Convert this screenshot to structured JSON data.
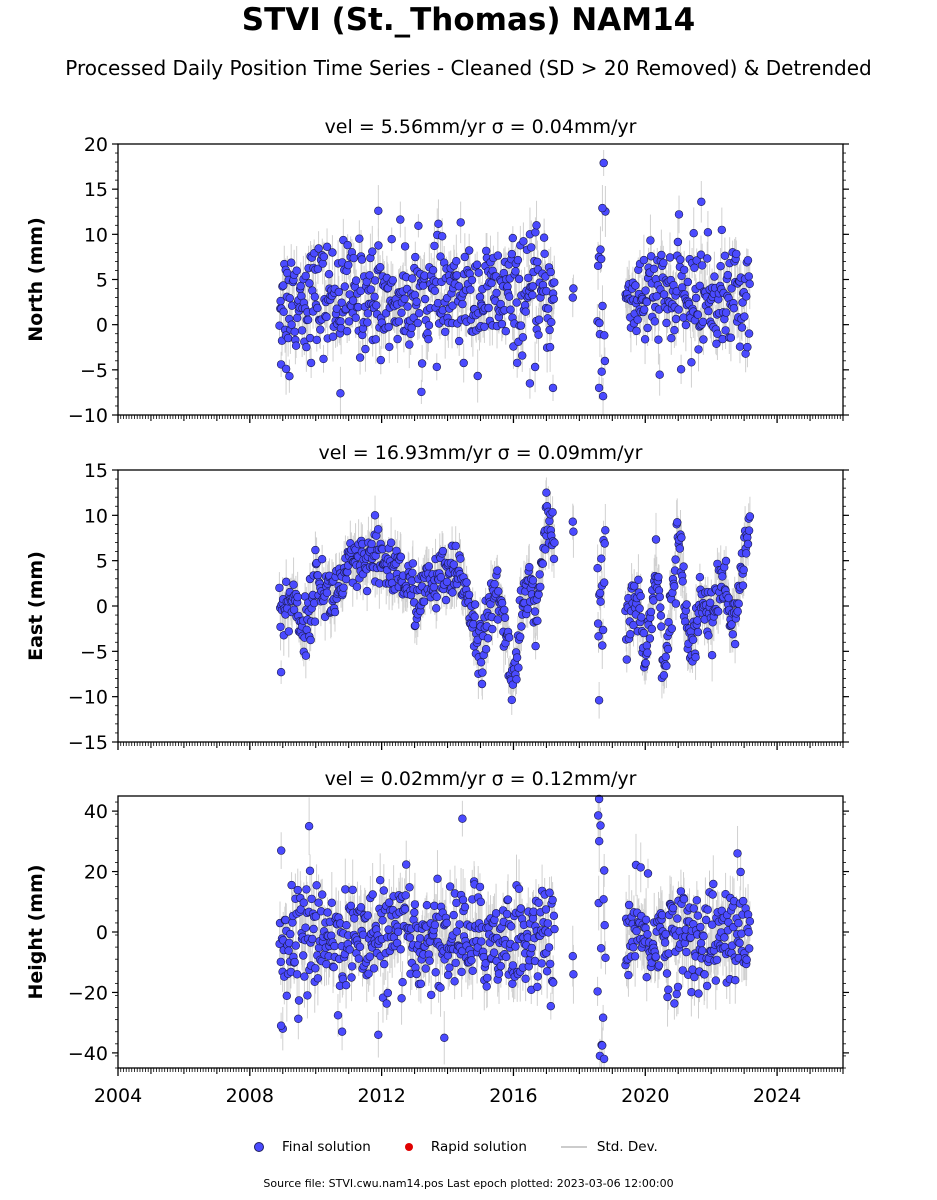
{
  "figure": {
    "title": "STVI (St._Thomas) NAM14",
    "subtitle": "Processed Daily Position Time Series - Cleaned (SD > 20 Removed) & Detrended",
    "footer": "Source file: STVI.cwu.nam14.pos  Last epoch plotted: 2023-03-06 12:00:00"
  },
  "legend": {
    "final": "Final solution",
    "rapid": "Rapid solution",
    "std": "Std. Dev."
  },
  "colors": {
    "final_fill": "#4a4aff",
    "final_edge": "#1a1a4a",
    "rapid": "#e00000",
    "std_dev": "#bdbdbd",
    "axis": "#000000"
  },
  "chart_data": [
    {
      "type": "scatter",
      "title": "vel = 5.56mm/yr   σ = 0.04mm/yr",
      "ylabel": "North (mm)",
      "xlabel": "",
      "xlim": [
        2004,
        2026
      ],
      "ylim": [
        -10,
        20
      ],
      "yticks": [
        -10,
        -5,
        0,
        5,
        10,
        15,
        20
      ],
      "xticks": [
        2004,
        2008,
        2012,
        2016,
        2020,
        2024
      ],
      "show_xtick_labels": false,
      "grid": false,
      "series": [
        {
          "name": "Final solution",
          "segments": [
            [
              2008.9,
              2017.25
            ],
            [
              2018.55,
              2018.8
            ],
            [
              2019.4,
              2023.18
            ]
          ],
          "isolated": [
            [
              2017.8,
              3.0
            ],
            [
              2017.82,
              4.0
            ]
          ],
          "x_step_years": 0.0185,
          "center": 3.0,
          "noise_sd": 3.0,
          "std_dev_halfwidth": 2.0,
          "outliers": [
            [
              2010.75,
              -7.6
            ],
            [
              2008.95,
              -4.4
            ],
            [
              2009.1,
              -4.9
            ],
            [
              2009.2,
              -5.7
            ],
            [
              2018.6,
              -7.0
            ],
            [
              2018.7,
              12.9
            ],
            [
              2021.7,
              13.6
            ],
            [
              2016.5,
              -6.5
            ],
            [
              2017.2,
              -7.0
            ],
            [
              2011.9,
              12.6
            ],
            [
              2016.7,
              11.0
            ]
          ]
        }
      ]
    },
    {
      "type": "scatter",
      "title": "vel = 16.93mm/yr   σ = 0.09mm/yr",
      "ylabel": "East (mm)",
      "xlabel": "",
      "xlim": [
        2004,
        2026
      ],
      "ylim": [
        -15,
        15
      ],
      "yticks": [
        -15,
        -10,
        -5,
        0,
        5,
        10,
        15
      ],
      "xticks": [
        2004,
        2008,
        2012,
        2016,
        2020,
        2024
      ],
      "show_xtick_labels": false,
      "grid": false,
      "series": [
        {
          "name": "Final solution",
          "segments": [
            [
              2008.9,
              2017.25
            ],
            [
              2018.55,
              2018.8
            ],
            [
              2019.4,
              2023.18
            ]
          ],
          "isolated": [
            [
              2017.8,
              9.3
            ],
            [
              2017.82,
              8.2
            ]
          ],
          "x_step_years": 0.0185,
          "trend_knots": [
            [
              2008.9,
              -1
            ],
            [
              2009.3,
              1
            ],
            [
              2009.7,
              -3
            ],
            [
              2010.0,
              3
            ],
            [
              2010.5,
              1
            ],
            [
              2011.0,
              4
            ],
            [
              2012.0,
              5
            ],
            [
              2012.5,
              4
            ],
            [
              2013.0,
              1
            ],
            [
              2013.8,
              3
            ],
            [
              2014.5,
              3
            ],
            [
              2015.0,
              -5
            ],
            [
              2015.5,
              2
            ],
            [
              2016.0,
              -8
            ],
            [
              2016.4,
              3
            ],
            [
              2016.7,
              -1
            ],
            [
              2017.0,
              9
            ],
            [
              2017.25,
              6
            ],
            [
              2018.55,
              0
            ],
            [
              2018.8,
              0
            ],
            [
              2019.4,
              -2
            ],
            [
              2019.8,
              1
            ],
            [
              2020.0,
              -7
            ],
            [
              2020.3,
              5
            ],
            [
              2020.6,
              -7
            ],
            [
              2021.0,
              8
            ],
            [
              2021.4,
              -5
            ],
            [
              2021.7,
              1
            ],
            [
              2022.0,
              -1
            ],
            [
              2022.4,
              3
            ],
            [
              2022.7,
              -3
            ],
            [
              2023.0,
              5
            ],
            [
              2023.18,
              10
            ]
          ],
          "noise_sd": 1.6,
          "std_dev_halfwidth": 2.0,
          "outliers": [
            [
              2008.95,
              -7.3
            ],
            [
              2018.6,
              -10.4
            ],
            [
              2017.0,
              12.5
            ],
            [
              2011.8,
              10.0
            ]
          ]
        }
      ]
    },
    {
      "type": "scatter",
      "title": "vel = 0.02mm/yr   σ = 0.12mm/yr",
      "ylabel": "Height (mm)",
      "xlabel": "",
      "xlim": [
        2004,
        2026
      ],
      "ylim": [
        -45,
        45
      ],
      "yticks": [
        -40,
        -20,
        0,
        20,
        40
      ],
      "xticks": [
        2004,
        2008,
        2012,
        2016,
        2020,
        2024
      ],
      "show_xtick_labels": true,
      "grid": false,
      "series": [
        {
          "name": "Final solution",
          "segments": [
            [
              2008.9,
              2017.25
            ],
            [
              2018.55,
              2018.8
            ],
            [
              2019.4,
              2023.18
            ]
          ],
          "isolated": [
            [
              2017.8,
              -8.0
            ],
            [
              2017.82,
              -14.0
            ]
          ],
          "x_step_years": 0.0185,
          "center": -2.0,
          "noise_sd": 8.5,
          "std_dev_halfwidth": 7.0,
          "outliers": [
            [
              2009.8,
              35.0
            ],
            [
              2014.45,
              37.5
            ],
            [
              2018.6,
              44.0
            ],
            [
              2018.75,
              -42.0
            ],
            [
              2013.9,
              -35.0
            ],
            [
              2009.0,
              -32.0
            ],
            [
              2008.95,
              -31.0
            ],
            [
              2010.8,
              -33.0
            ],
            [
              2022.8,
              26.0
            ],
            [
              2011.9,
              -34.0
            ]
          ]
        }
      ]
    }
  ]
}
